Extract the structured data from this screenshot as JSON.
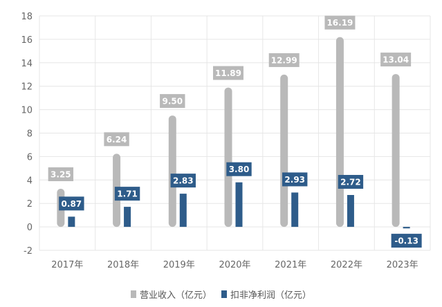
{
  "chart_data": {
    "type": "bar",
    "categories": [
      "2017年",
      "2018年",
      "2019年",
      "2020年",
      "2021年",
      "2022年",
      "2023年"
    ],
    "series": [
      {
        "name": "营业收入（亿元）",
        "values": [
          3.25,
          6.24,
          9.5,
          11.89,
          12.99,
          16.19,
          13.04
        ],
        "color": "#b9b9b9"
      },
      {
        "name": "扣非净利润（亿元）",
        "values": [
          0.87,
          1.71,
          2.83,
          3.8,
          2.93,
          2.72,
          -0.13
        ],
        "color": "#2e5c8a"
      }
    ],
    "value_labels": [
      [
        "3.25",
        "6.24",
        "9.50",
        "11.89",
        "12.99",
        "16.19",
        "13.04"
      ],
      [
        "0.87",
        "1.71",
        "2.83",
        "3.80",
        "2.93",
        "2.72",
        "-0.13"
      ]
    ],
    "ylim": [
      -2,
      18
    ],
    "yticks": [
      -2,
      0,
      2,
      4,
      6,
      8,
      10,
      12,
      14,
      16,
      18
    ],
    "ytick_labels": [
      "-2",
      "0",
      "2",
      "4",
      "6",
      "8",
      "10",
      "12",
      "14",
      "16",
      "18"
    ],
    "grid": true,
    "legend_position": "bottom-center",
    "title": "",
    "xlabel": "",
    "ylabel": ""
  }
}
